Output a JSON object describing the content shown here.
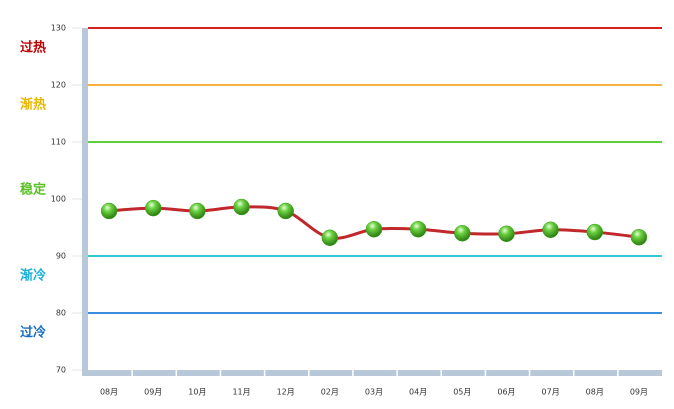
{
  "chart_data": {
    "type": "line",
    "categories": [
      "08月",
      "09月",
      "10月",
      "11月",
      "12月",
      "02月",
      "03月",
      "04月",
      "05月",
      "06月",
      "07月",
      "08月",
      "09月"
    ],
    "series": [
      {
        "color": "#c0282d",
        "marker_color": "#3aa61a",
        "values": [
          97.9,
          98.4,
          97.9,
          98.6,
          97.9,
          93.2,
          94.7,
          94.7,
          94.0,
          93.9,
          94.6,
          94.2,
          93.3
        ]
      }
    ],
    "ylim": [
      70,
      130
    ],
    "yticks": [
      70,
      80,
      90,
      100,
      110,
      120,
      130
    ],
    "reference_lines": [
      {
        "value": 130,
        "color": "#d42020"
      },
      {
        "value": 120,
        "color": "#f5b040"
      },
      {
        "value": 110,
        "color": "#5cd03a"
      },
      {
        "value": 90,
        "color": "#30c8d8"
      },
      {
        "value": 80,
        "color": "#3a8ee0"
      }
    ],
    "zones": [
      {
        "label": "过热",
        "color": "#c00000"
      },
      {
        "label": "渐热",
        "color": "#e8b800"
      },
      {
        "label": "稳定",
        "color": "#5cc02a"
      },
      {
        "label": "渐冷",
        "color": "#1ab0d8"
      },
      {
        "label": "过冷",
        "color": "#1a6fc0"
      }
    ]
  }
}
